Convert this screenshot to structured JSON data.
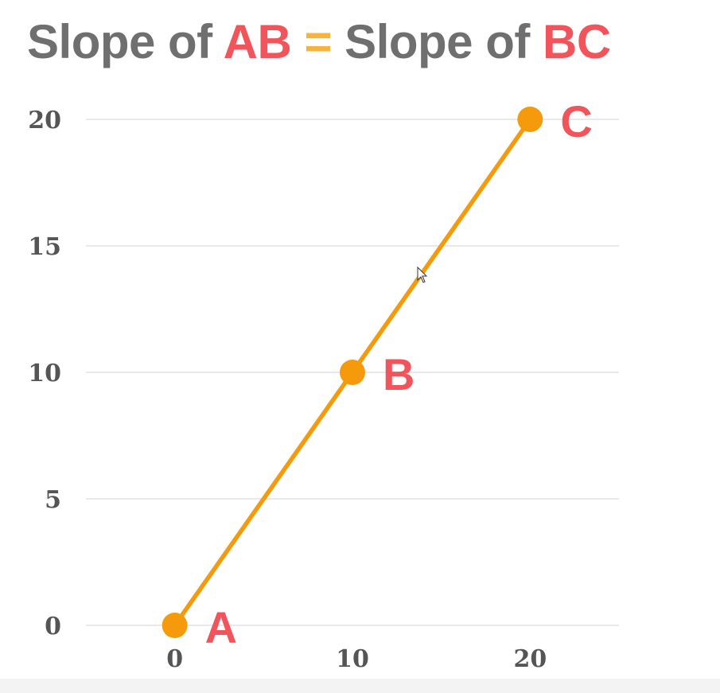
{
  "title": {
    "part1": "Slope of ",
    "part2": "AB",
    "part3": " = ",
    "part4": "Slope of ",
    "part5": "BC"
  },
  "colors": {
    "title_gray": "#6f6f6f",
    "accent_red": "#f2545b",
    "equals_orange": "#f7b33d",
    "line_orange": "#f59a0a",
    "grid": "#e2e2e2",
    "tick_text": "#555555"
  },
  "chart_data": {
    "type": "line",
    "title": "",
    "xlabel": "",
    "ylabel": "",
    "x": [
      0,
      10,
      20
    ],
    "y": [
      0,
      10,
      20
    ],
    "point_labels": [
      "A",
      "B",
      "C"
    ],
    "xticks": [
      "0",
      "10",
      "20"
    ],
    "yticks": [
      "0",
      "5",
      "10",
      "15",
      "20"
    ],
    "xlim": [
      -5,
      25
    ],
    "ylim": [
      0,
      20
    ],
    "grid": "horizontal",
    "legend": "none"
  }
}
